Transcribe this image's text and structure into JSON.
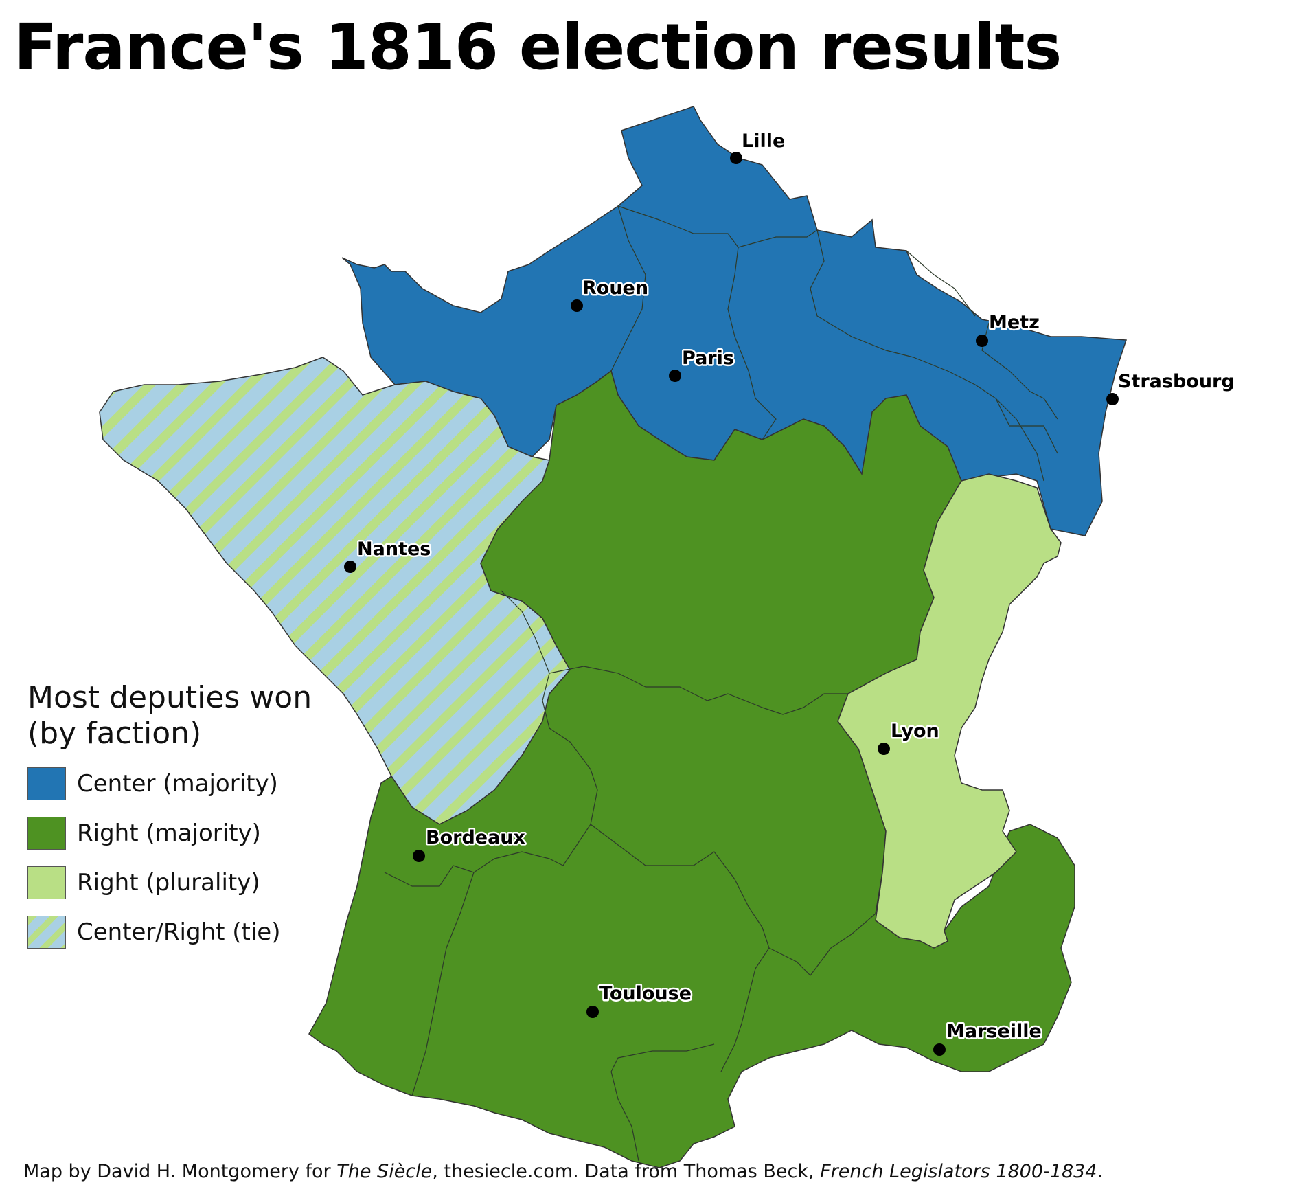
{
  "title": "France's 1816 election results",
  "legend": {
    "title_line1": "Most deputies won",
    "title_line2": "(by faction)",
    "items": [
      {
        "label": "Center (majority)",
        "color": "#2275b3"
      },
      {
        "label": "Right (majority)",
        "color": "#4e9222"
      },
      {
        "label": "Right (plurality)",
        "color": "#b9df85"
      },
      {
        "label": "Center/Right (tie)",
        "color": "#a9d0e4",
        "stripe_color": "#b9df85"
      }
    ]
  },
  "cities": [
    "Lille",
    "Rouen",
    "Metz",
    "Paris",
    "Strasbourg",
    "Nantes",
    "Lyon",
    "Bordeaux",
    "Toulouse",
    "Marseille"
  ],
  "footer": {
    "part1": "Map by David H. Montgomery for ",
    "part2": "The Siècle",
    "part3": ", thesiecle.com. Data from Thomas Beck, ",
    "part4": "French Legislators 1800-1834",
    "part5": "."
  }
}
